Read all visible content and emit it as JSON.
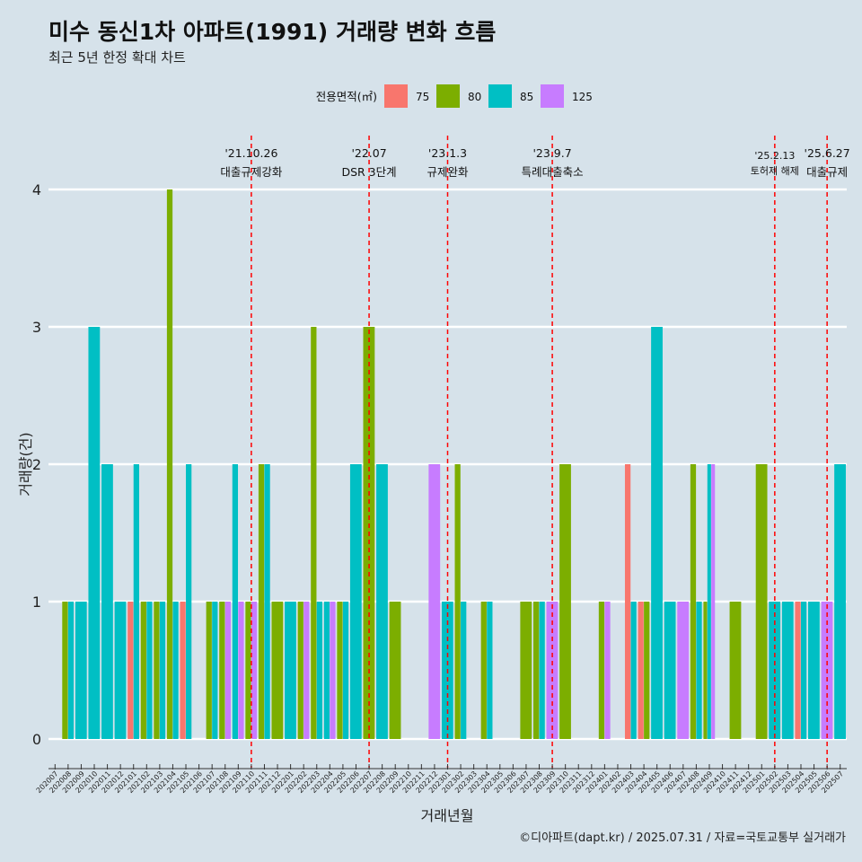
{
  "header": {
    "title": "미수 동신1차 아파트(1991) 거래량 변화 흐름",
    "subtitle": "최근 5년 한정 확대 차트"
  },
  "caption": "©디아파트(dapt.kr) / 2025.07.31 / 자료=국토교통부 실거래가",
  "colors": {
    "75": "#f8766d",
    "80": "#7cae00",
    "85": "#00bfc4",
    "125": "#c77cff",
    "event_line": "#ff0000",
    "background": "#d6e2ea",
    "grid": "#ffffff"
  },
  "chart_data": {
    "type": "bar",
    "title": "미수 동신1차 아파트(1991) 거래량 변화 흐름",
    "subtitle": "최근 5년 한정 확대 차트",
    "xlabel": "거래년월",
    "ylabel": "거래량(건)",
    "ylim": [
      0,
      4
    ],
    "yticks": [
      0,
      1,
      2,
      3,
      4
    ],
    "grid": true,
    "legend": {
      "title": "전용면적(㎡)",
      "position": "top",
      "entries": [
        "75",
        "80",
        "85",
        "125"
      ]
    },
    "categories": [
      "202007",
      "202008",
      "202009",
      "202010",
      "202011",
      "202012",
      "202101",
      "202102",
      "202103",
      "202104",
      "202105",
      "202106",
      "202107",
      "202108",
      "202109",
      "202110",
      "202111",
      "202112",
      "202201",
      "202202",
      "202203",
      "202204",
      "202205",
      "202206",
      "202207",
      "202208",
      "202209",
      "202210",
      "202211",
      "202212",
      "202301",
      "202302",
      "202303",
      "202304",
      "202305",
      "202306",
      "202307",
      "202308",
      "202309",
      "202310",
      "202311",
      "202312",
      "202401",
      "202402",
      "202403",
      "202404",
      "202405",
      "202406",
      "202407",
      "202408",
      "202409",
      "202410",
      "202411",
      "202412",
      "202501",
      "202502",
      "202503",
      "202504",
      "202505",
      "202506",
      "202507"
    ],
    "bars": [
      {
        "month": "202008",
        "area": "80",
        "value": 1
      },
      {
        "month": "202008",
        "area": "85",
        "value": 1
      },
      {
        "month": "202009",
        "area": "85",
        "value": 1
      },
      {
        "month": "202010",
        "area": "85",
        "value": 3
      },
      {
        "month": "202011",
        "area": "85",
        "value": 2
      },
      {
        "month": "202012",
        "area": "85",
        "value": 1
      },
      {
        "month": "202101",
        "area": "75",
        "value": 1
      },
      {
        "month": "202101",
        "area": "85",
        "value": 2
      },
      {
        "month": "202102",
        "area": "80",
        "value": 1
      },
      {
        "month": "202102",
        "area": "85",
        "value": 1
      },
      {
        "month": "202103",
        "area": "80",
        "value": 1
      },
      {
        "month": "202103",
        "area": "85",
        "value": 1
      },
      {
        "month": "202104",
        "area": "80",
        "value": 4
      },
      {
        "month": "202104",
        "area": "85",
        "value": 1
      },
      {
        "month": "202105",
        "area": "75",
        "value": 1
      },
      {
        "month": "202105",
        "area": "85",
        "value": 2
      },
      {
        "month": "202107",
        "area": "80",
        "value": 1
      },
      {
        "month": "202107",
        "area": "85",
        "value": 1
      },
      {
        "month": "202108",
        "area": "80",
        "value": 1
      },
      {
        "month": "202108",
        "area": "125",
        "value": 1
      },
      {
        "month": "202109",
        "area": "85",
        "value": 2
      },
      {
        "month": "202109",
        "area": "125",
        "value": 1
      },
      {
        "month": "202110",
        "area": "80",
        "value": 1
      },
      {
        "month": "202110",
        "area": "125",
        "value": 1
      },
      {
        "month": "202111",
        "area": "80",
        "value": 2
      },
      {
        "month": "202111",
        "area": "85",
        "value": 2
      },
      {
        "month": "202112",
        "area": "80",
        "value": 1
      },
      {
        "month": "202201",
        "area": "85",
        "value": 1
      },
      {
        "month": "202202",
        "area": "80",
        "value": 1
      },
      {
        "month": "202202",
        "area": "125",
        "value": 1
      },
      {
        "month": "202203",
        "area": "80",
        "value": 3
      },
      {
        "month": "202203",
        "area": "85",
        "value": 1
      },
      {
        "month": "202204",
        "area": "85",
        "value": 1
      },
      {
        "month": "202204",
        "area": "125",
        "value": 1
      },
      {
        "month": "202205",
        "area": "80",
        "value": 1
      },
      {
        "month": "202205",
        "area": "85",
        "value": 1
      },
      {
        "month": "202206",
        "area": "85",
        "value": 2
      },
      {
        "month": "202207",
        "area": "80",
        "value": 3
      },
      {
        "month": "202208",
        "area": "85",
        "value": 2
      },
      {
        "month": "202209",
        "area": "80",
        "value": 1
      },
      {
        "month": "202212",
        "area": "125",
        "value": 2
      },
      {
        "month": "202301",
        "area": "85",
        "value": 1
      },
      {
        "month": "202302",
        "area": "80",
        "value": 2
      },
      {
        "month": "202302",
        "area": "85",
        "value": 1
      },
      {
        "month": "202304",
        "area": "80",
        "value": 1
      },
      {
        "month": "202304",
        "area": "85",
        "value": 1
      },
      {
        "month": "202307",
        "area": "80",
        "value": 1
      },
      {
        "month": "202308",
        "area": "80",
        "value": 1
      },
      {
        "month": "202308",
        "area": "85",
        "value": 1
      },
      {
        "month": "202309",
        "area": "125",
        "value": 1
      },
      {
        "month": "202310",
        "area": "80",
        "value": 2
      },
      {
        "month": "202401",
        "area": "80",
        "value": 1
      },
      {
        "month": "202401",
        "area": "125",
        "value": 1
      },
      {
        "month": "202403",
        "area": "75",
        "value": 2
      },
      {
        "month": "202403",
        "area": "85",
        "value": 1
      },
      {
        "month": "202404",
        "area": "75",
        "value": 1
      },
      {
        "month": "202404",
        "area": "80",
        "value": 1
      },
      {
        "month": "202405",
        "area": "85",
        "value": 3
      },
      {
        "month": "202406",
        "area": "85",
        "value": 1
      },
      {
        "month": "202407",
        "area": "125",
        "value": 1
      },
      {
        "month": "202408",
        "area": "80",
        "value": 2
      },
      {
        "month": "202408",
        "area": "85",
        "value": 1
      },
      {
        "month": "202409",
        "area": "80",
        "value": 1
      },
      {
        "month": "202409",
        "area": "85",
        "value": 2
      },
      {
        "month": "202409",
        "area": "125",
        "value": 2
      },
      {
        "month": "202411",
        "area": "80",
        "value": 1
      },
      {
        "month": "202501",
        "area": "80",
        "value": 2
      },
      {
        "month": "202502",
        "area": "85",
        "value": 1
      },
      {
        "month": "202503",
        "area": "85",
        "value": 1
      },
      {
        "month": "202504",
        "area": "75",
        "value": 1
      },
      {
        "month": "202504",
        "area": "85",
        "value": 1
      },
      {
        "month": "202505",
        "area": "85",
        "value": 1
      },
      {
        "month": "202506",
        "area": "125",
        "value": 1
      },
      {
        "month": "202507",
        "area": "85",
        "value": 2
      }
    ],
    "events": [
      {
        "date_label": "'21.10.26",
        "label": "대출규제강화",
        "month": "202110"
      },
      {
        "date_label": "'22.07",
        "label": "DSR 3단계",
        "month": "202207"
      },
      {
        "date_label": "'23.1.3",
        "label": "규제완화",
        "month": "202301"
      },
      {
        "date_label": "'23.9.7",
        "label": "특례대출축소",
        "month": "202309"
      },
      {
        "date_label": "'25.2.13",
        "label": "토허제 해제",
        "month": "202502"
      },
      {
        "date_label": "'25.6.27",
        "label": "대출규제",
        "month": "202506"
      }
    ]
  }
}
